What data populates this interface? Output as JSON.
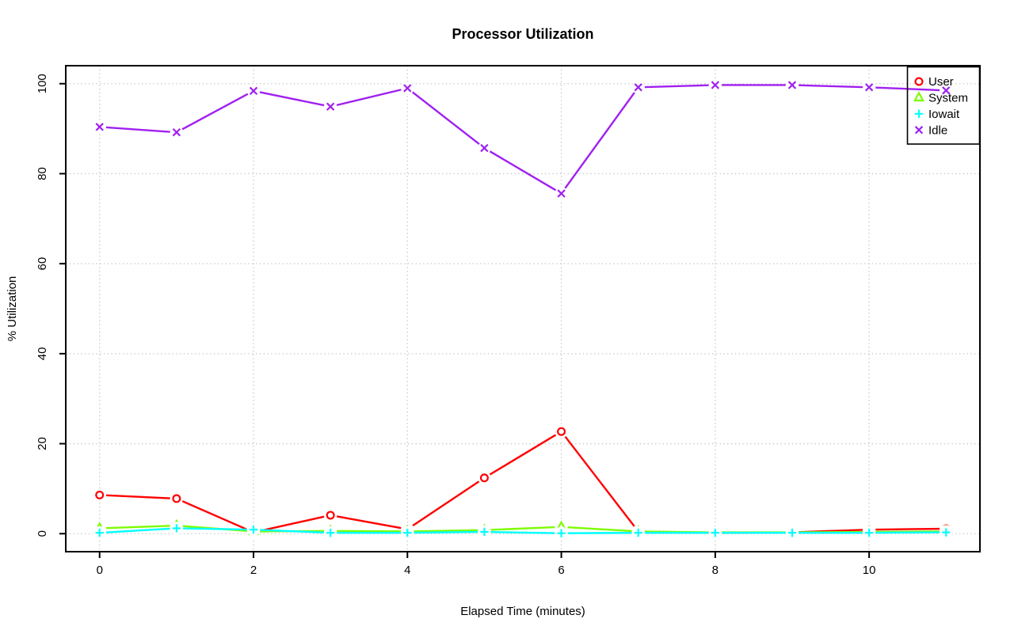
{
  "figure": {
    "background": "#ffffff",
    "axis_color": "#000000"
  },
  "chart_data": {
    "type": "line",
    "title": "Processor Utilization",
    "xlabel": "Elapsed Time (minutes)",
    "ylabel": "% Utilization",
    "x": [
      0,
      1,
      2,
      3,
      4,
      5,
      6,
      7,
      8,
      9,
      10,
      11
    ],
    "xlim": [
      -0.44,
      11.44
    ],
    "ylim": [
      -4,
      104
    ],
    "xticks": [
      0,
      2,
      4,
      6,
      8,
      10
    ],
    "yticks": [
      0,
      20,
      40,
      60,
      80,
      100
    ],
    "grid": {
      "shown": true,
      "line_style": "dotted",
      "color": "#c6c6c6"
    },
    "legend": {
      "position": "top-right",
      "border": true,
      "background": "transparent"
    },
    "series": [
      {
        "name": "User",
        "color": "#ff0000",
        "marker": "open-circle",
        "values": [
          8.6,
          7.8,
          0.3,
          4.1,
          1.0,
          12.4,
          22.7,
          0.5,
          0.2,
          0.3,
          0.9,
          1.1
        ]
      },
      {
        "name": "System",
        "color": "#7cfc00",
        "marker": "open-triangle",
        "values": [
          1.2,
          1.8,
          0.5,
          0.6,
          0.5,
          0.8,
          1.5,
          0.5,
          0.3,
          0.3,
          0.4,
          0.5
        ]
      },
      {
        "name": "Iowait",
        "color": "#00ffff",
        "marker": "plus",
        "values": [
          0.2,
          1.2,
          0.9,
          0.2,
          0.2,
          0.4,
          0.1,
          0.2,
          0.2,
          0.2,
          0.2,
          0.3
        ]
      },
      {
        "name": "Idle",
        "color": "#a020f0",
        "marker": "x-cross",
        "values": [
          90.4,
          89.2,
          98.4,
          94.9,
          99.0,
          85.7,
          75.6,
          99.2,
          99.7,
          99.7,
          99.2,
          98.5
        ]
      }
    ]
  }
}
